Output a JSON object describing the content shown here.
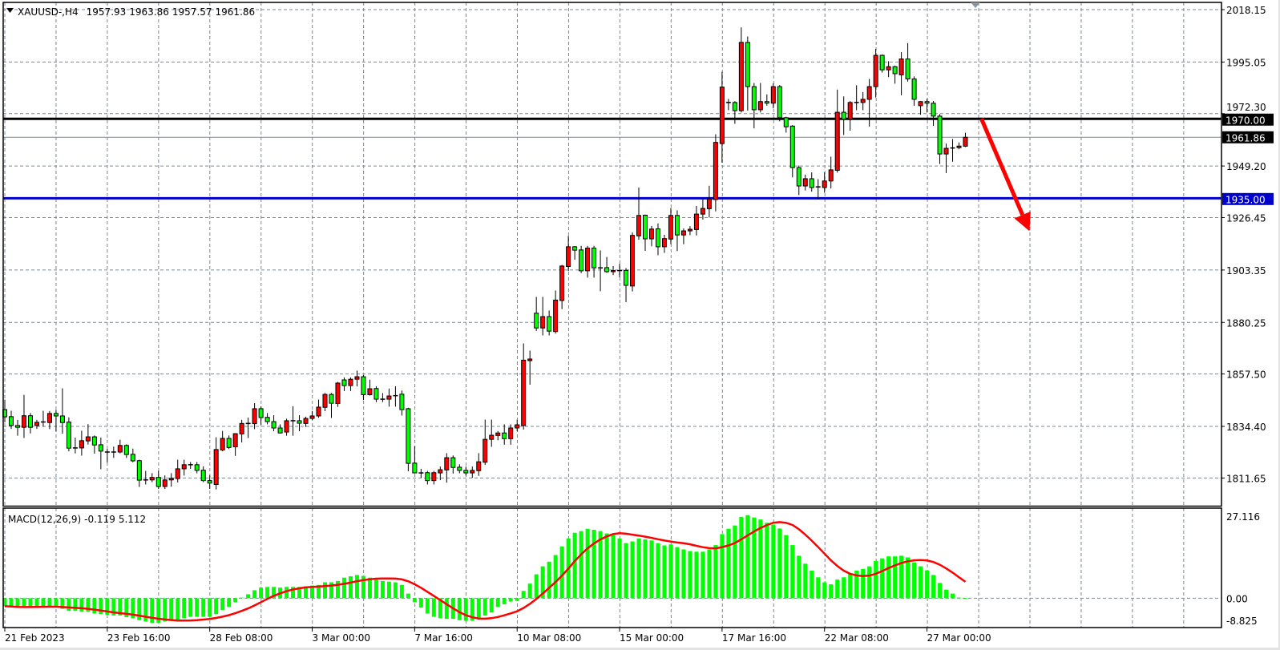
{
  "header": {
    "symbol": "XAUUSD-,H4",
    "open": "1957.93",
    "high": "1963.86",
    "low": "1957.57",
    "close": "1961.86"
  },
  "macd_header": {
    "name": "MACD(12,26,9)",
    "main": "-0.119",
    "signal": "5.112"
  },
  "colors": {
    "bull_candle": "#ff0000",
    "bear_candle": "#00ff00",
    "grid": "#7b8794",
    "resistance_line": "#000000",
    "support_line": "#0000cc",
    "price_line": "#778899",
    "macd_histogram": "#00ff00",
    "macd_signal": "#ff0000",
    "arrow": "#ff0000"
  },
  "chart_data": [
    {
      "type": "candlestick",
      "symbol": "XAUUSD-",
      "timeframe": "H4",
      "ylim": [
        1811.65,
        2018.15
      ],
      "grid": true,
      "price_ticks": [
        "2018.15",
        "1995.05",
        "1972.30",
        "1949.20",
        "1926.45",
        "1903.35",
        "1880.25",
        "1857.50",
        "1834.40",
        "1811.65"
      ],
      "time_ticks": [
        {
          "label": "21 Feb 2023",
          "bar": 0
        },
        {
          "label": "23 Feb 16:00",
          "bar": 16
        },
        {
          "label": "28 Feb 08:00",
          "bar": 32
        },
        {
          "label": "3 Mar 00:00",
          "bar": 48
        },
        {
          "label": "7 Mar 16:00",
          "bar": 64
        },
        {
          "label": "10 Mar 08:00",
          "bar": 80
        },
        {
          "label": "15 Mar 00:00",
          "bar": 96
        },
        {
          "label": "17 Mar 16:00",
          "bar": 112
        },
        {
          "label": "22 Mar 08:00",
          "bar": 128
        },
        {
          "label": "27 Mar 00:00",
          "bar": 144
        }
      ],
      "horizontal_lines": [
        {
          "name": "resistance",
          "price": 1970.0,
          "label": "1970.00",
          "color": "#000000"
        },
        {
          "name": "support",
          "price": 1935.0,
          "label": "1935.00",
          "color": "#0000cc"
        }
      ],
      "current_price": {
        "price": 1961.86,
        "label": "1961.86"
      },
      "annotation": {
        "type": "arrow",
        "direction": "down",
        "color": "#ff0000",
        "from": {
          "bar": 152.5,
          "price": 1970.0
        },
        "to": {
          "bar": 160,
          "price": 1920.5
        }
      },
      "ohlc": [
        [
          1841.8,
          1846.2,
          1836.2,
          1838.6
        ],
        [
          1838.7,
          1841.3,
          1833.3,
          1834.8
        ],
        [
          1834.8,
          1837.3,
          1830.3,
          1834.0
        ],
        [
          1834.0,
          1848.3,
          1829.3,
          1839.1
        ],
        [
          1839.1,
          1840.3,
          1831.3,
          1834.0
        ],
        [
          1834.8,
          1837.3,
          1833.3,
          1836.2
        ],
        [
          1836.2,
          1841.3,
          1834.3,
          1836.5
        ],
        [
          1836.1,
          1841.2,
          1833.2,
          1840.1
        ],
        [
          1840.1,
          1841.7,
          1832.2,
          1839.0
        ],
        [
          1839.0,
          1851.2,
          1831.2,
          1836.1
        ],
        [
          1836.3,
          1838.4,
          1823.4,
          1824.8
        ],
        [
          1824.9,
          1829.5,
          1822.5,
          1824.9
        ],
        [
          1824.9,
          1832.5,
          1821.5,
          1828.1
        ],
        [
          1828.0,
          1835.4,
          1826.4,
          1829.8
        ],
        [
          1829.8,
          1830.4,
          1822.4,
          1826.2
        ],
        [
          1826.3,
          1829.5,
          1815.5,
          1823.5
        ],
        [
          1823.1,
          1824.5,
          1818.5,
          1823.1
        ],
        [
          1823.1,
          1825.5,
          1820.5,
          1823.1
        ],
        [
          1823.1,
          1828.5,
          1822.5,
          1826.0
        ],
        [
          1826.0,
          1826.5,
          1820.5,
          1822.0
        ],
        [
          1822.1,
          1824.6,
          1818.6,
          1819.2
        ],
        [
          1819.3,
          1819.7,
          1807.7,
          1810.7
        ],
        [
          1810.8,
          1814.8,
          1808.8,
          1810.8
        ],
        [
          1810.8,
          1813.8,
          1809.8,
          1811.9
        ],
        [
          1811.9,
          1814.8,
          1806.8,
          1807.9
        ],
        [
          1807.9,
          1812.8,
          1806.8,
          1810.8
        ],
        [
          1810.8,
          1813.8,
          1807.8,
          1811.5
        ],
        [
          1811.4,
          1819.7,
          1809.7,
          1815.7
        ],
        [
          1815.7,
          1819.7,
          1812.7,
          1817.5
        ],
        [
          1817.5,
          1818.7,
          1815.7,
          1817.5
        ],
        [
          1817.5,
          1818.7,
          1813.7,
          1815.0
        ],
        [
          1815.1,
          1816.8,
          1809.8,
          1810.5
        ],
        [
          1810.5,
          1812.8,
          1806.8,
          1809.4
        ],
        [
          1808.8,
          1829.6,
          1806.6,
          1824.2
        ],
        [
          1824.0,
          1832.4,
          1823.4,
          1829.1
        ],
        [
          1829.1,
          1830.4,
          1824.4,
          1825.1
        ],
        [
          1825.4,
          1831.4,
          1821.4,
          1831.2
        ],
        [
          1831.1,
          1837.3,
          1827.3,
          1835.7
        ],
        [
          1835.7,
          1838.3,
          1829.3,
          1835.7
        ],
        [
          1835.6,
          1844.7,
          1833.2,
          1842.2
        ],
        [
          1842.2,
          1843.2,
          1835.2,
          1838.3
        ],
        [
          1838.4,
          1840.3,
          1835.3,
          1836.5
        ],
        [
          1836.5,
          1839.3,
          1832.3,
          1833.7
        ],
        [
          1833.7,
          1835.3,
          1831.3,
          1831.5
        ],
        [
          1831.9,
          1837.8,
          1830.3,
          1836.9
        ],
        [
          1836.9,
          1843.3,
          1830.3,
          1836.9
        ],
        [
          1836.9,
          1839.3,
          1832.3,
          1835.8
        ],
        [
          1835.7,
          1838.7,
          1834.2,
          1837.9
        ],
        [
          1837.9,
          1841.2,
          1837.2,
          1839.0
        ],
        [
          1839.0,
          1846.2,
          1838.2,
          1842.9
        ],
        [
          1842.8,
          1849.1,
          1841.1,
          1848.5
        ],
        [
          1848.5,
          1849.1,
          1838.1,
          1844.6
        ],
        [
          1844.5,
          1854.0,
          1843.0,
          1853.5
        ],
        [
          1854.9,
          1856.0,
          1850.0,
          1852.4
        ],
        [
          1852.4,
          1856.0,
          1850.0,
          1855.2
        ],
        [
          1855.2,
          1859.0,
          1852.0,
          1856.3
        ],
        [
          1856.3,
          1857.0,
          1846.0,
          1848.4
        ],
        [
          1848.4,
          1855.0,
          1848.0,
          1851.0
        ],
        [
          1851.1,
          1852.1,
          1845.1,
          1846.4
        ],
        [
          1846.4,
          1849.1,
          1845.1,
          1846.4
        ],
        [
          1846.4,
          1851.1,
          1843.1,
          1847.8
        ],
        [
          1847.8,
          1852.1,
          1843.1,
          1848.1
        ],
        [
          1848.6,
          1850.2,
          1839.2,
          1841.8
        ],
        [
          1842.2,
          1842.6,
          1814.6,
          1818.1
        ],
        [
          1818.2,
          1825.7,
          1813.7,
          1813.9
        ],
        [
          1813.9,
          1815.7,
          1811.7,
          1813.9
        ],
        [
          1814.0,
          1814.8,
          1808.8,
          1810.5
        ],
        [
          1810.5,
          1814.8,
          1808.8,
          1814.0
        ],
        [
          1813.9,
          1816.7,
          1810.7,
          1815.3
        ],
        [
          1815.2,
          1822.6,
          1809.6,
          1820.6
        ],
        [
          1820.6,
          1821.6,
          1813.6,
          1816.3
        ],
        [
          1816.4,
          1817.7,
          1813.7,
          1815.0
        ],
        [
          1815.0,
          1816.7,
          1812.7,
          1813.9
        ],
        [
          1813.9,
          1816.7,
          1811.7,
          1815.0
        ],
        [
          1814.9,
          1822.6,
          1812.6,
          1818.8
        ],
        [
          1818.6,
          1837.4,
          1817.4,
          1828.7
        ],
        [
          1828.7,
          1837.4,
          1825.4,
          1830.5
        ],
        [
          1830.4,
          1832.3,
          1828.3,
          1831.5
        ],
        [
          1831.5,
          1835.3,
          1826.3,
          1829.0
        ],
        [
          1829.0,
          1835.3,
          1826.3,
          1833.7
        ],
        [
          1833.7,
          1837.3,
          1832.3,
          1835.1
        ],
        [
          1834.8,
          1871.0,
          1833.0,
          1863.6
        ],
        [
          1863.4,
          1867.8,
          1852.8,
          1864.1
        ],
        [
          1884.3,
          1891.5,
          1876.5,
          1877.8
        ],
        [
          1877.8,
          1891.5,
          1874.5,
          1882.8
        ],
        [
          1882.8,
          1885.5,
          1874.5,
          1876.4
        ],
        [
          1876.2,
          1894.3,
          1875.3,
          1890.1
        ],
        [
          1889.9,
          1905.6,
          1886.1,
          1905.1
        ],
        [
          1904.9,
          1918.4,
          1902.9,
          1913.6
        ],
        [
          1913.6,
          1913.9,
          1907.9,
          1912.1
        ],
        [
          1912.2,
          1914.0,
          1902.0,
          1903.0
        ],
        [
          1903.0,
          1914.0,
          1900.0,
          1913.0
        ],
        [
          1913.0,
          1914.0,
          1900.0,
          1904.3
        ],
        [
          1904.3,
          1912.0,
          1894.0,
          1904.3
        ],
        [
          1904.4,
          1909.1,
          1902.1,
          1902.6
        ],
        [
          1902.6,
          1905.1,
          1901.1,
          1903.1
        ],
        [
          1903.1,
          1906.1,
          1900.1,
          1903.1
        ],
        [
          1903.2,
          1904.2,
          1889.2,
          1896.6
        ],
        [
          1896.3,
          1919.9,
          1893.9,
          1918.6
        ],
        [
          1918.4,
          1939.7,
          1916.7,
          1927.4
        ],
        [
          1927.5,
          1927.8,
          1911.8,
          1917.1
        ],
        [
          1917.1,
          1922.8,
          1913.8,
          1921.4
        ],
        [
          1921.5,
          1923.9,
          1909.9,
          1913.6
        ],
        [
          1913.6,
          1918.9,
          1910.9,
          1917.2
        ],
        [
          1917.0,
          1930.7,
          1914.7,
          1927.4
        ],
        [
          1927.4,
          1929.7,
          1911.7,
          1918.8
        ],
        [
          1918.8,
          1921.7,
          1914.7,
          1920.6
        ],
        [
          1920.6,
          1922.7,
          1918.7,
          1921.3
        ],
        [
          1921.2,
          1931.6,
          1918.6,
          1928.0
        ],
        [
          1928.0,
          1934.6,
          1925.6,
          1930.5
        ],
        [
          1930.4,
          1940.5,
          1926.5,
          1934.7
        ],
        [
          1934.4,
          1963.2,
          1929.2,
          1959.6
        ],
        [
          1959.1,
          1990.7,
          1950.7,
          1984.0
        ],
        [
          1977.2,
          1978.8,
          1973.8,
          1977.2
        ],
        [
          1977.2,
          1977.8,
          1967.8,
          1973.6
        ],
        [
          1973.6,
          2010.3,
          1972.8,
          2003.7
        ],
        [
          2003.7,
          2006.3,
          1973.6,
          1984.2
        ],
        [
          1984.2,
          1985.8,
          1965.8,
          1974.0
        ],
        [
          1974.0,
          1985.8,
          1972.8,
          1977.6
        ],
        [
          1977.6,
          1980.8,
          1975.8,
          1976.9
        ],
        [
          1976.9,
          1985.6,
          1974.6,
          1984.2
        ],
        [
          1984.2,
          1984.9,
          1968.9,
          1970.5
        ],
        [
          1970.5,
          1970.9,
          1963.9,
          1966.5
        ],
        [
          1966.8,
          1967.2,
          1944.2,
          1948.5
        ],
        [
          1948.5,
          1949.4,
          1936.4,
          1940.4
        ],
        [
          1940.4,
          1945.4,
          1938.4,
          1943.6
        ],
        [
          1943.6,
          1946.4,
          1937.9,
          1939.7
        ],
        [
          1940.0,
          1943.4,
          1934.4,
          1940.0
        ],
        [
          1939.7,
          1946.4,
          1937.4,
          1942.6
        ],
        [
          1942.6,
          1953.3,
          1939.3,
          1947.5
        ],
        [
          1947.3,
          1982.9,
          1946.3,
          1972.9
        ],
        [
          1972.9,
          1979.9,
          1962.9,
          1969.8
        ],
        [
          1969.8,
          1977.8,
          1964.8,
          1977.2
        ],
        [
          1977.2,
          1984.8,
          1973.8,
          1977.2
        ],
        [
          1977.2,
          1981.8,
          1973.8,
          1978.6
        ],
        [
          1978.6,
          1987.6,
          1966.6,
          1984.2
        ],
        [
          1984.2,
          2000.9,
          1979.4,
          1998.0
        ],
        [
          1998.0,
          1998.4,
          1990.4,
          1991.6
        ],
        [
          1991.6,
          1995.4,
          1988.4,
          1993.0
        ],
        [
          1993.0,
          1993.5,
          1985.5,
          1989.9
        ],
        [
          1989.4,
          1999.4,
          1980.4,
          1996.4
        ],
        [
          1996.4,
          2003.4,
          1986.4,
          1987.6
        ],
        [
          1987.6,
          1988.7,
          1975.7,
          1978.6
        ],
        [
          1975.8,
          1977.8,
          1971.8,
          1977.6
        ],
        [
          1977.6,
          1978.8,
          1972.8,
          1976.9
        ],
        [
          1976.9,
          1977.9,
          1966.9,
          1971.2
        ],
        [
          1971.2,
          1972.1,
          1950.1,
          1954.5
        ],
        [
          1954.5,
          1959.1,
          1946.1,
          1957.0
        ],
        [
          1957.0,
          1961.1,
          1951.1,
          1957.3
        ],
        [
          1957.3,
          1959.6,
          1956.6,
          1958.0
        ],
        [
          1957.93,
          1963.86,
          1957.57,
          1961.86
        ]
      ]
    },
    {
      "type": "bar+line",
      "indicator": "MACD(12,26,9)",
      "ylim": [
        -8.825,
        27.116
      ],
      "y_ticks": [
        "27.116",
        "0.00",
        "-8.825"
      ],
      "signal_period": 9,
      "main": [
        -2.4,
        -2.6,
        -2.8,
        -2.8,
        -2.6,
        -2.4,
        -2.4,
        -2.4,
        -2.6,
        -3.2,
        -3.8,
        -3.8,
        -4.0,
        -4.0,
        -4.6,
        -4.8,
        -5.0,
        -5.2,
        -5.2,
        -5.7,
        -6.0,
        -6.6,
        -7.0,
        -7.4,
        -7.4,
        -7.0,
        -6.8,
        -6.4,
        -6.0,
        -5.6,
        -5.6,
        -5.6,
        -5.6,
        -4.8,
        -3.5,
        -2.6,
        -1.2,
        0.2,
        1.2,
        2.4,
        3.2,
        3.4,
        3.4,
        3.2,
        3.4,
        3.4,
        3.4,
        3.6,
        3.8,
        4.0,
        4.8,
        4.8,
        5.2,
        6.2,
        6.6,
        7.0,
        6.7,
        6.2,
        5.6,
        5.2,
        5.0,
        4.8,
        4.0,
        1.4,
        -1.2,
        -2.8,
        -4.6,
        -5.6,
        -6.0,
        -6.2,
        -6.2,
        -6.6,
        -6.8,
        -6.8,
        -6.0,
        -5.2,
        -4.3,
        -2.6,
        -1.8,
        -1.0,
        -0.8,
        2.2,
        4.4,
        7.2,
        9.6,
        11.0,
        13.0,
        15.6,
        18.0,
        19.7,
        20.2,
        20.9,
        20.6,
        20.2,
        19.5,
        19.0,
        18.0,
        16.6,
        17.1,
        18.0,
        17.7,
        17.4,
        16.6,
        15.9,
        16.2,
        15.4,
        14.7,
        14.2,
        14.0,
        14.0,
        14.7,
        16.0,
        19.3,
        20.9,
        21.9,
        24.5,
        25.0,
        24.3,
        23.7,
        22.7,
        22.2,
        21.0,
        19.0,
        16.0,
        12.8,
        10.4,
        8.3,
        6.3,
        4.8,
        4.2,
        5.6,
        6.3,
        7.5,
        8.3,
        8.8,
        9.6,
        11.2,
        12.0,
        12.6,
        12.6,
        12.8,
        12.3,
        10.8,
        9.6,
        8.4,
        7.0,
        4.6,
        2.6,
        1.4,
        0.2,
        -0.119
      ]
    }
  ]
}
